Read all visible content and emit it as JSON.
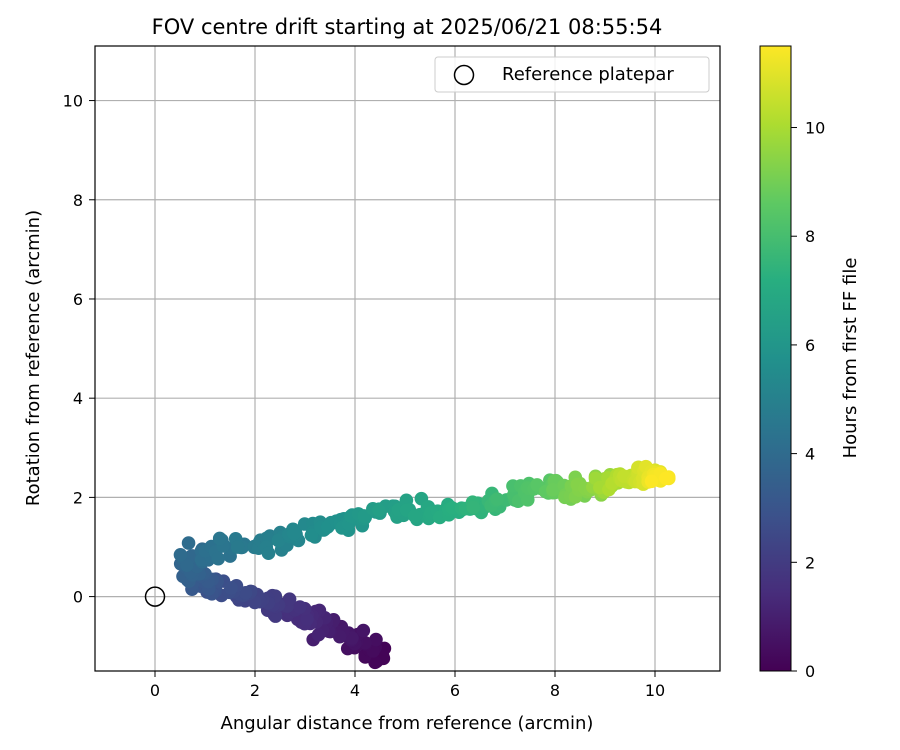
{
  "chart_data": {
    "type": "scatter",
    "title": "FOV centre drift starting at 2025/06/21 08:55:54",
    "xlabel": "Angular distance from reference (arcmin)",
    "ylabel": "Rotation from reference (arcmin)",
    "xlim": [
      -1.2,
      11.3
    ],
    "ylim": [
      -1.5,
      11.1
    ],
    "xticks": [
      0,
      2,
      4,
      6,
      8,
      10
    ],
    "yticks": [
      0,
      2,
      4,
      6,
      8,
      10
    ],
    "grid": true,
    "legend": {
      "placement": "top-right",
      "entries": [
        "Reference platepar"
      ]
    },
    "reference": {
      "x": 0,
      "y": 0,
      "label": "Reference platepar"
    },
    "colorbar": {
      "label": "Hours from first FF file",
      "colormap": "viridis",
      "range": [
        0,
        11.5
      ],
      "ticks": [
        0,
        2,
        4,
        6,
        8,
        10
      ]
    },
    "trend": [
      {
        "h": 0.0,
        "x": 4.5,
        "y": -1.3
      },
      {
        "h": 0.5,
        "x": 4.1,
        "y": -0.9
      },
      {
        "h": 1.0,
        "x": 3.4,
        "y": -0.6
      },
      {
        "h": 1.5,
        "x": 2.9,
        "y": -0.4
      },
      {
        "h": 2.0,
        "x": 2.3,
        "y": -0.1
      },
      {
        "h": 2.5,
        "x": 1.7,
        "y": 0.05
      },
      {
        "h": 3.0,
        "x": 1.1,
        "y": 0.2
      },
      {
        "h": 3.5,
        "x": 0.75,
        "y": 0.45
      },
      {
        "h": 4.0,
        "x": 0.8,
        "y": 0.85
      },
      {
        "h": 4.5,
        "x": 1.5,
        "y": 1.0
      },
      {
        "h": 5.0,
        "x": 2.4,
        "y": 1.1
      },
      {
        "h": 5.5,
        "x": 3.2,
        "y": 1.35
      },
      {
        "h": 6.0,
        "x": 4.0,
        "y": 1.55
      },
      {
        "h": 6.5,
        "x": 4.9,
        "y": 1.8
      },
      {
        "h": 7.0,
        "x": 5.7,
        "y": 1.65
      },
      {
        "h": 7.5,
        "x": 6.5,
        "y": 1.8
      },
      {
        "h": 8.0,
        "x": 7.2,
        "y": 2.05
      },
      {
        "h": 8.5,
        "x": 7.8,
        "y": 2.2
      },
      {
        "h": 9.0,
        "x": 8.3,
        "y": 2.15
      },
      {
        "h": 9.5,
        "x": 8.8,
        "y": 2.25
      },
      {
        "h": 10.0,
        "x": 9.2,
        "y": 2.35
      },
      {
        "h": 10.5,
        "x": 9.6,
        "y": 2.35
      },
      {
        "h": 11.0,
        "x": 9.9,
        "y": 2.45
      },
      {
        "h": 11.5,
        "x": 10.2,
        "y": 2.4
      }
    ],
    "points_count": 420,
    "scatter_x": 0.35,
    "scatter_y": 0.28
  }
}
